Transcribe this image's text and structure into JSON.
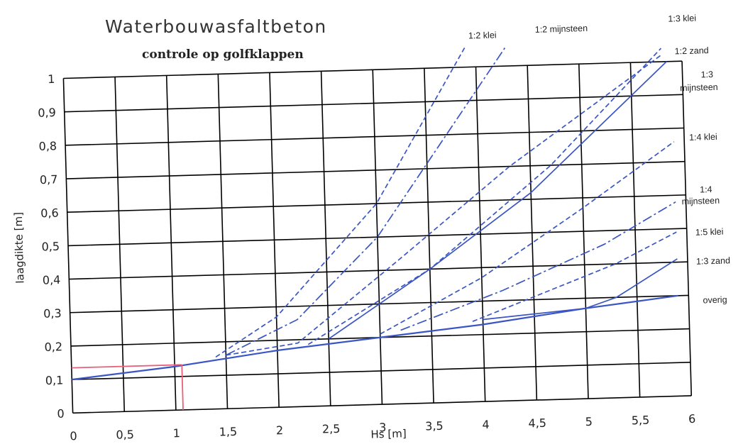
{
  "chart_data": {
    "type": "line",
    "title": "Waterbouwasfaltbeton",
    "subtitle": "controle op golfklappen",
    "xlabel": "Hs [m]",
    "ylabel": "laagdikte [m]",
    "xlim": [
      0,
      6
    ],
    "ylim": [
      0,
      1
    ],
    "x_ticks": [
      "0",
      "0,5",
      "1",
      "1,5",
      "2",
      "2,5",
      "3",
      "3,5",
      "4",
      "4,5",
      "5",
      "5,5",
      "6"
    ],
    "y_ticks": [
      "0",
      "0,1",
      "0,2",
      "0,3",
      "0,4",
      "0,5",
      "0,6",
      "0,7",
      "0,8",
      "0,9",
      "1"
    ],
    "grid": true,
    "colors": {
      "curves": "#3a55c4",
      "marker": "#e8607a",
      "grid": "#000000"
    },
    "series": [
      {
        "name": "1:2 klei",
        "style": "dashed",
        "x": [
          1.4,
          2.0,
          3.0,
          3.9
        ],
        "y": [
          0.155,
          0.27,
          0.6,
          1.06
        ]
      },
      {
        "name": "1:2 mijnsteen",
        "style": "dashdot",
        "x": [
          1.5,
          2.2,
          3.0,
          4.3
        ],
        "y": [
          0.16,
          0.26,
          0.5,
          1.06
        ]
      },
      {
        "name": "1:3 klei",
        "style": "dashed",
        "x": [
          2.3,
          3.5,
          4.7,
          5.8
        ],
        "y": [
          0.185,
          0.4,
          0.7,
          1.04
        ]
      },
      {
        "name": "1:2 zand",
        "style": "dashed",
        "x": [
          1.5,
          2.2,
          3.2,
          4.3,
          5.8
        ],
        "y": [
          0.16,
          0.19,
          0.43,
          0.7,
          1.02
        ]
      },
      {
        "name": "1:3 mijnsteen",
        "style": "solid",
        "x": [
          2.5,
          3.5,
          4.5,
          5.85
        ],
        "y": [
          0.2,
          0.4,
          0.62,
          1.0
        ]
      },
      {
        "name": "1:4 klei",
        "style": "dashed",
        "x": [
          3.0,
          4.0,
          5.0,
          5.9
        ],
        "y": [
          0.21,
          0.37,
          0.57,
          0.76
        ]
      },
      {
        "name": "1:4 mijnsteen",
        "style": "dashdot",
        "x": [
          3.2,
          4.2,
          5.2,
          5.9
        ],
        "y": [
          0.22,
          0.33,
          0.46,
          0.58
        ]
      },
      {
        "name": "1:5 klei",
        "style": "dashed",
        "x": [
          3.9,
          4.6,
          5.3,
          5.9
        ],
        "y": [
          0.24,
          0.32,
          0.4,
          0.49
        ]
      },
      {
        "name": "1:3 zand",
        "style": "solid",
        "x": [
          4.0,
          5.0,
          5.3,
          5.9
        ],
        "y": [
          0.245,
          0.27,
          0.3,
          0.41
        ]
      },
      {
        "name": "overig",
        "style": "solid",
        "x": [
          0,
          1.0,
          2.0,
          3.0,
          4.0,
          5.0,
          5.9
        ],
        "y": [
          0.1,
          0.13,
          0.17,
          0.2,
          0.23,
          0.27,
          0.3
        ]
      }
    ],
    "marker_lines": {
      "x": 1.07,
      "y": 0.135
    }
  }
}
